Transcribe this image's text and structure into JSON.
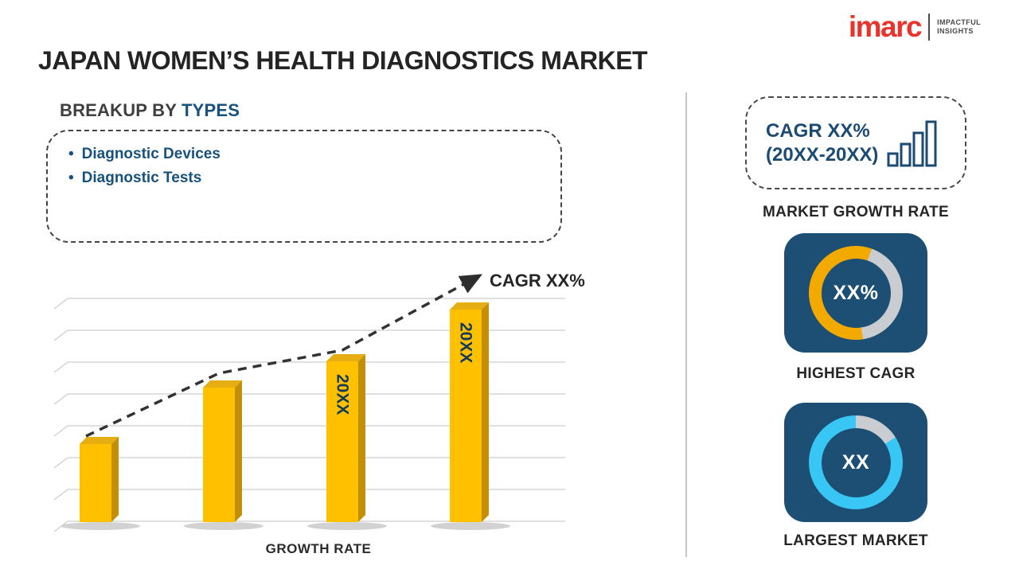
{
  "header": {
    "title": "JAPAN WOMEN’S HEALTH DIAGNOSTICS MARKET",
    "logo": {
      "brand": "imarc",
      "tagline1": "IMPACTFUL",
      "tagline2": "INSIGHTS"
    }
  },
  "breakup": {
    "label": "BREAKUP BY ",
    "highlight": "TYPES",
    "items": [
      "Diagnostic Devices",
      "Diagnostic Tests"
    ]
  },
  "chart_data": {
    "type": "bar",
    "title": "GROWTH RATE",
    "xlabel": "GROWTH RATE",
    "ylabel": "",
    "categories": [
      "",
      "",
      "20XX",
      "20XX"
    ],
    "values": [
      35,
      60,
      72,
      95
    ],
    "bar_labels": [
      "",
      "",
      "20XX",
      "20XX"
    ],
    "ylim": [
      0,
      100
    ],
    "grid": true,
    "legend": "none",
    "trend_label": "CAGR XX%",
    "trend_style": "dashed ascending arrow"
  },
  "right_panel": {
    "cagr_line1": "CAGR XX%",
    "cagr_line2": "(20XX-20XX)",
    "growth_label": "MARKET GROWTH RATE",
    "highest_cagr_value": "XX%",
    "highest_cagr_label": "HIGHEST CAGR",
    "largest_market_value": "XX",
    "largest_market_label": "LARGEST MARKET"
  },
  "colors": {
    "bar_front": "#FFC000",
    "bar_side": "#C28F06",
    "bar_top": "#E6AE13",
    "bar_label": "#123A5C",
    "gridline": "#C0C0C0",
    "shadow": "#D2D2D2",
    "trend": "#333333",
    "navy_tile": "#1D4E74",
    "accent_gold": "#F2A900",
    "accent_cyan": "#38C6F4",
    "ring_gray": "#C9CDD2",
    "brand_red": "#E8342C",
    "heading_blue": "#17527E",
    "divider": "#C6C6C6"
  }
}
